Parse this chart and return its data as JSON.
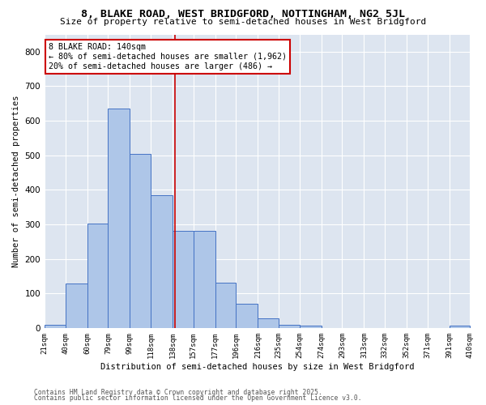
{
  "title": "8, BLAKE ROAD, WEST BRIDGFORD, NOTTINGHAM, NG2 5JL",
  "subtitle": "Size of property relative to semi-detached houses in West Bridgford",
  "xlabel": "Distribution of semi-detached houses by size in West Bridgford",
  "ylabel": "Number of semi-detached properties",
  "bin_edges": [
    21,
    40,
    60,
    79,
    99,
    118,
    138,
    157,
    177,
    196,
    216,
    235,
    254,
    274,
    293,
    313,
    332,
    352,
    371,
    391,
    410
  ],
  "bar_heights": [
    8,
    128,
    303,
    635,
    503,
    385,
    280,
    280,
    130,
    70,
    27,
    10,
    7,
    0,
    0,
    0,
    0,
    0,
    0,
    7
  ],
  "bar_color": "#aec6e8",
  "bar_edge_color": "#4472c4",
  "vline_x": 140,
  "vline_color": "#cc0000",
  "annotation_line1": "8 BLAKE ROAD: 140sqm",
  "annotation_line2": "← 80% of semi-detached houses are smaller (1,962)",
  "annotation_line3": "20% of semi-detached houses are larger (486) →",
  "ylim": [
    0,
    850
  ],
  "yticks": [
    0,
    100,
    200,
    300,
    400,
    500,
    600,
    700,
    800
  ],
  "background_color": "#dde5f0",
  "footer_line1": "Contains HM Land Registry data © Crown copyright and database right 2025.",
  "footer_line2": "Contains public sector information licensed under the Open Government Licence v3.0."
}
